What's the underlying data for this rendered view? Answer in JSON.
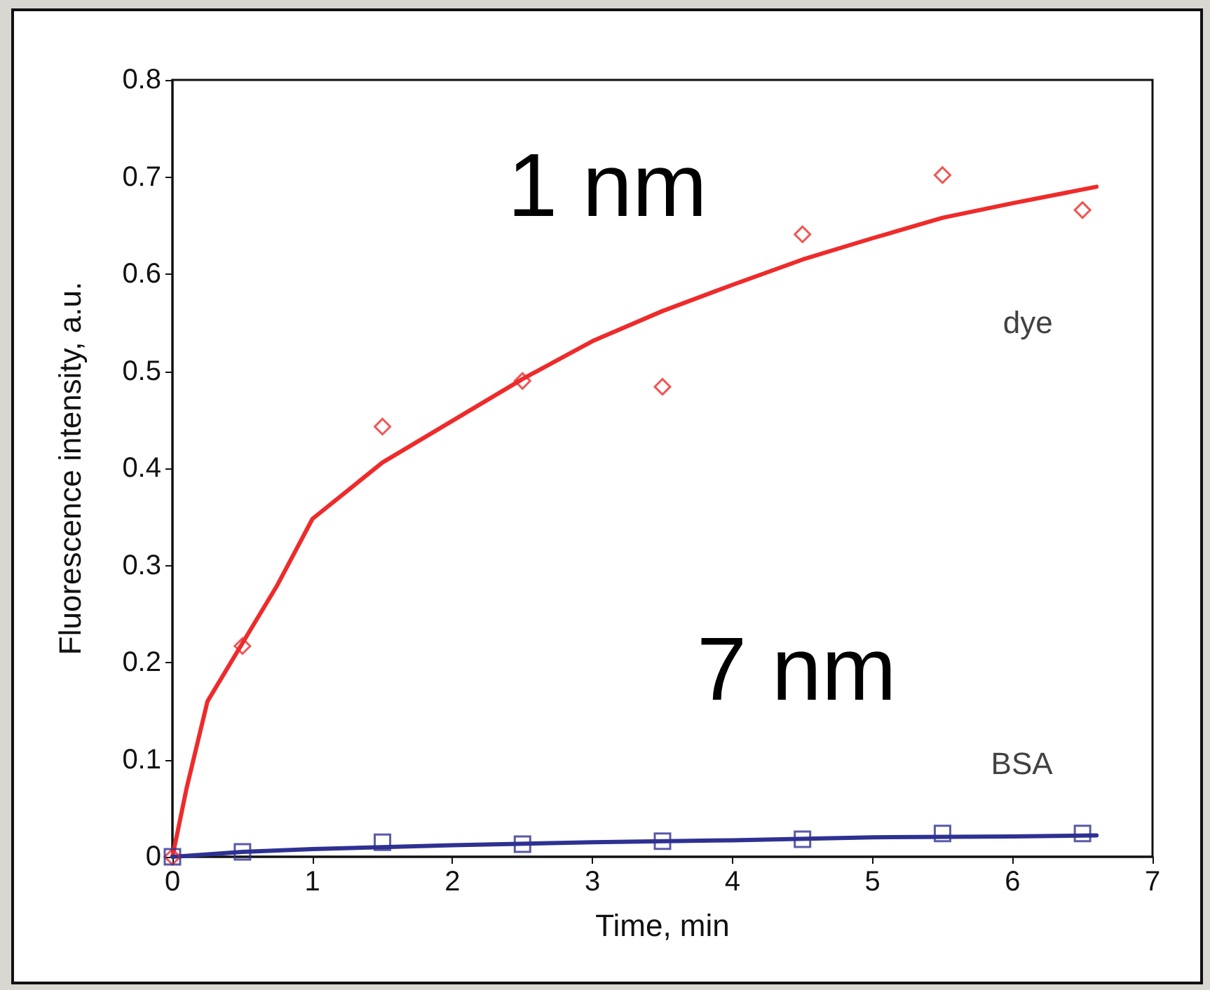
{
  "chart_data": {
    "type": "scatter",
    "xlabel": "Time, min",
    "ylabel": "Fluorescence intensity, a.u.",
    "xlim": [
      0,
      7
    ],
    "xticks": [
      0,
      1,
      2,
      3,
      4,
      5,
      6,
      7
    ],
    "ylim": [
      0,
      0.8
    ],
    "yticks": [
      0,
      0.1,
      0.2,
      0.3,
      0.4,
      0.5,
      0.6,
      0.7,
      0.8
    ],
    "grid": false,
    "series": [
      {
        "name": "dye",
        "color": "#ee2b2b",
        "marker": "diamond",
        "x": [
          0,
          0.5,
          1.5,
          2.5,
          3.5,
          4.5,
          5.5,
          6.5
        ],
        "values": [
          0,
          0.217,
          0.443,
          0.49,
          0.484,
          0.641,
          0.702,
          0.666
        ]
      },
      {
        "type": "line",
        "color": "#ee2b2b",
        "marker": "none",
        "x": [
          0,
          0.1,
          0.25,
          0.5,
          0.75,
          1,
          1.5,
          2,
          2.5,
          3,
          3.5,
          4,
          4.5,
          5,
          5.5,
          6,
          6.6
        ],
        "values": [
          0,
          0.07,
          0.16,
          0.22,
          0.28,
          0.348,
          0.406,
          0.449,
          0.492,
          0.531,
          0.562,
          0.589,
          0.615,
          0.637,
          0.658,
          0.673,
          0.69
        ]
      },
      {
        "name": "BSA",
        "color": "#2e3192",
        "marker": "square",
        "x": [
          0,
          0.5,
          1.5,
          2.5,
          3.5,
          4.5,
          5.5,
          6.5
        ],
        "values": [
          0,
          0.005,
          0.015,
          0.013,
          0.016,
          0.018,
          0.024,
          0.024
        ]
      },
      {
        "type": "line",
        "color": "#2e3192",
        "marker": "none",
        "x": [
          0,
          0.5,
          1,
          1.5,
          2,
          3,
          4,
          5,
          6,
          6.6
        ],
        "values": [
          0,
          0.005,
          0.008,
          0.01,
          0.012,
          0.015,
          0.017,
          0.02,
          0.021,
          0.022
        ]
      }
    ],
    "annotations": [
      "1 nm",
      "7 nm"
    ]
  }
}
